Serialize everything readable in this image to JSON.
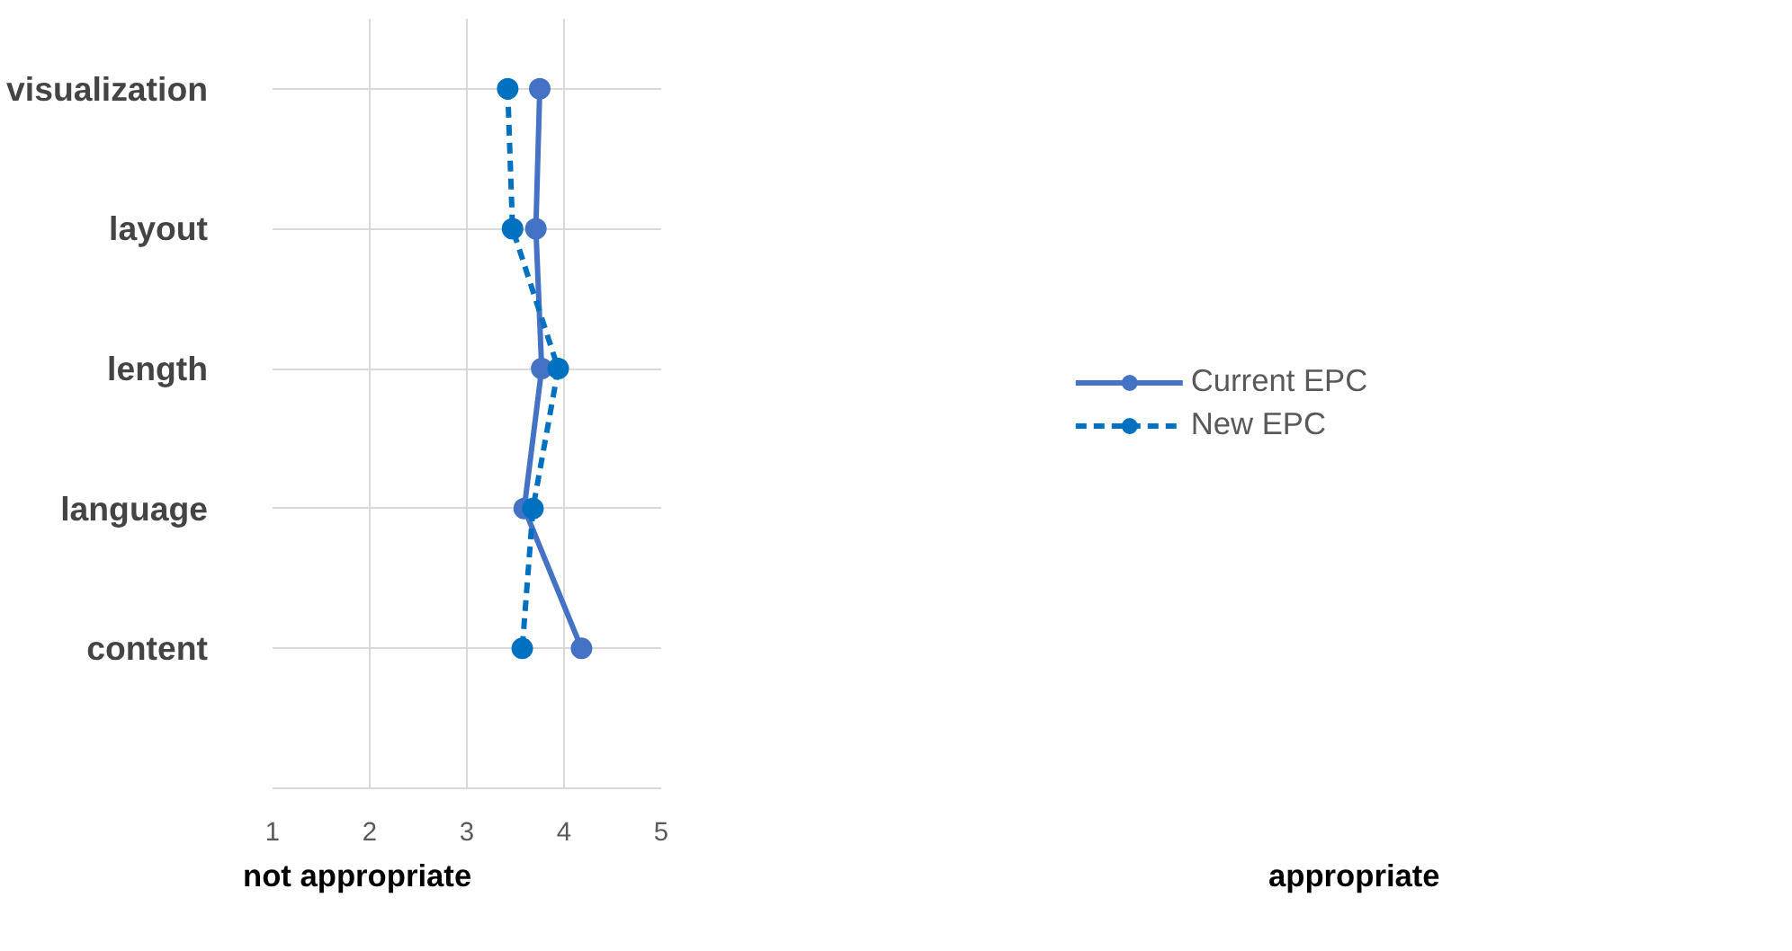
{
  "chart_data": {
    "type": "line",
    "orientation": "horizontal",
    "categories": [
      "visualization",
      "layout",
      "length",
      "language",
      "content"
    ],
    "xlim": [
      1,
      5
    ],
    "xticks": [
      1,
      2,
      3,
      4,
      5
    ],
    "grid": true,
    "legend": "right",
    "marker": "circle",
    "series": [
      {
        "name": "Current EPC",
        "color": "#4472c4",
        "line_style": "solid",
        "values": [
          3.75,
          3.71,
          3.77,
          3.59,
          4.18
        ]
      },
      {
        "name": "New EPC",
        "color": "#0070c0",
        "line_style": "dashed",
        "values": [
          3.42,
          3.47,
          3.94,
          3.68,
          3.57
        ]
      }
    ],
    "annotations": [
      "not appropriate",
      "appropriate"
    ]
  }
}
